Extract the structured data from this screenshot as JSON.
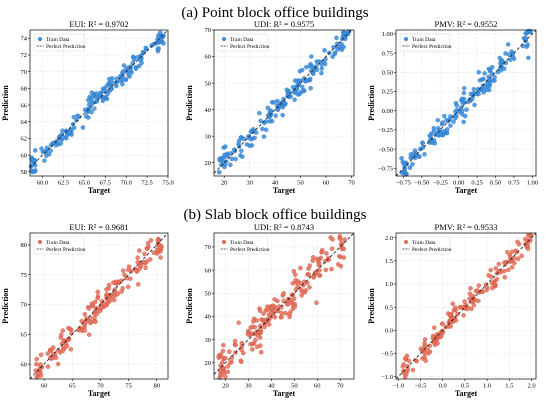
{
  "sections": [
    {
      "title": "(a) Point block office buildings"
    },
    {
      "title": "(b) Slab block office buildings"
    }
  ],
  "colors": {
    "blue": "#3a8ee0",
    "red": "#e8705a",
    "red_stroke": "#c24a36",
    "line": "#222222"
  },
  "chart_data": [
    {
      "type": "scatter",
      "section": 0,
      "title": "EUI: R² = 0.9702",
      "xlabel": "Target",
      "ylabel": "Prediction",
      "xlim": [
        58.5,
        75
      ],
      "ylim": [
        57.5,
        75
      ],
      "xticks": [
        60.0,
        62.5,
        65.0,
        67.5,
        70.0,
        72.5,
        75.0
      ],
      "yticks": [
        58,
        60,
        62,
        64,
        66,
        68,
        70,
        72,
        74
      ],
      "xtick_labels": [
        "60.0",
        "62.5",
        "65.0",
        "67.5",
        "70.0",
        "72.5",
        "75.0"
      ],
      "ytick_labels": [
        "58",
        "60",
        "62",
        "64",
        "66",
        "68",
        "70",
        "72",
        "74"
      ],
      "range": [
        58.5,
        74.5
      ],
      "noise": 0.55,
      "n": 170,
      "series": [
        {
          "name": "Train Data",
          "color": "blue"
        },
        {
          "name": "Perfect Prediction",
          "style": "dashed"
        }
      ],
      "grid": true,
      "legend": "top-left"
    },
    {
      "type": "scatter",
      "section": 0,
      "title": "UDI: R² = 0.9575",
      "xlabel": "Target",
      "ylabel": "Prediction",
      "xlim": [
        16,
        71
      ],
      "ylim": [
        15,
        70
      ],
      "xticks": [
        20,
        30,
        40,
        50,
        60,
        70
      ],
      "yticks": [
        20,
        30,
        40,
        50,
        60,
        70
      ],
      "xtick_labels": [
        "20",
        "30",
        "40",
        "50",
        "60",
        "70"
      ],
      "ytick_labels": [
        "20",
        "30",
        "40",
        "50",
        "60",
        "70"
      ],
      "range": [
        18,
        69
      ],
      "noise": 2.6,
      "n": 170,
      "series": [
        {
          "name": "Train Data",
          "color": "blue"
        },
        {
          "name": "Perfect Prediction",
          "style": "dashed"
        }
      ],
      "grid": true,
      "legend": "top-left"
    },
    {
      "type": "scatter",
      "section": 0,
      "title": "PMV: R² = 0.9552",
      "xlabel": "Target",
      "ylabel": "Prediction",
      "xlim": [
        -0.85,
        1.05
      ],
      "ylim": [
        -0.85,
        1.05
      ],
      "xticks": [
        -0.75,
        -0.5,
        -0.25,
        0.0,
        0.25,
        0.5,
        0.75,
        1.0
      ],
      "yticks": [
        -0.75,
        -0.5,
        -0.25,
        0.0,
        0.25,
        0.5,
        0.75,
        1.0
      ],
      "xtick_labels": [
        "−0.75",
        "−0.50",
        "−0.25",
        "0.00",
        "0.25",
        "0.50",
        "0.75",
        "1.00"
      ],
      "ytick_labels": [
        "−0.75",
        "−0.50",
        "−0.25",
        "0.00",
        "0.25",
        "0.50",
        "0.75",
        "1.00"
      ],
      "range": [
        -0.78,
        1.0
      ],
      "noise": 0.085,
      "n": 170,
      "series": [
        {
          "name": "Train Data",
          "color": "blue"
        },
        {
          "name": "Perfect Prediction",
          "style": "dashed"
        }
      ],
      "grid": true,
      "legend": "top-left"
    },
    {
      "type": "scatter",
      "section": 1,
      "title": "EUI: R² = 0.9681",
      "xlabel": "Target",
      "ylabel": "Prediction",
      "xlim": [
        57.5,
        82
      ],
      "ylim": [
        57.5,
        82
      ],
      "xticks": [
        60,
        65,
        70,
        75,
        80
      ],
      "yticks": [
        60,
        65,
        70,
        75,
        80
      ],
      "xtick_labels": [
        "60",
        "65",
        "70",
        "75",
        "80"
      ],
      "ytick_labels": [
        "60",
        "65",
        "70",
        "75",
        "80"
      ],
      "range": [
        58.5,
        81
      ],
      "noise": 1.05,
      "n": 170,
      "series": [
        {
          "name": "Train Data",
          "color": "red"
        },
        {
          "name": "Perfect Prediction",
          "style": "dashed"
        }
      ],
      "grid": true,
      "legend": "top-left"
    },
    {
      "type": "scatter",
      "section": 1,
      "title": "UDI: R² = 0.8743",
      "xlabel": "Target",
      "ylabel": "Prediction",
      "xlim": [
        15,
        76
      ],
      "ylim": [
        13,
        76
      ],
      "xticks": [
        20,
        30,
        40,
        50,
        60,
        70
      ],
      "yticks": [
        20,
        30,
        40,
        50,
        60,
        70
      ],
      "xtick_labels": [
        "20",
        "30",
        "40",
        "50",
        "60",
        "70"
      ],
      "ytick_labels": [
        "20",
        "30",
        "40",
        "50",
        "60",
        "70"
      ],
      "range": [
        17,
        72
      ],
      "noise": 4.6,
      "n": 200,
      "series": [
        {
          "name": "Train Data",
          "color": "red"
        },
        {
          "name": "Perfect Prediction",
          "style": "dashed"
        }
      ],
      "grid": true,
      "legend": "top-left"
    },
    {
      "type": "scatter",
      "section": 1,
      "title": "PMV: R² = 0.9533",
      "xlabel": "Target",
      "ylabel": "Prediction",
      "xlim": [
        -1.05,
        2.1
      ],
      "ylim": [
        -1.05,
        2.1
      ],
      "xticks": [
        -1.0,
        -0.5,
        0.0,
        0.5,
        1.0,
        1.5,
        2.0
      ],
      "yticks": [
        -1.0,
        -0.5,
        0.0,
        0.5,
        1.0,
        1.5,
        2.0
      ],
      "xtick_labels": [
        "−1.0",
        "−0.5",
        "0.0",
        "0.5",
        "1.0",
        "1.5",
        "2.0"
      ],
      "ytick_labels": [
        "−1.0",
        "−0.5",
        "0.0",
        "0.5",
        "1.0",
        "1.5",
        "2.0"
      ],
      "range": [
        -0.9,
        2.0
      ],
      "noise": 0.13,
      "n": 170,
      "series": [
        {
          "name": "Train Data",
          "color": "red"
        },
        {
          "name": "Perfect Prediction",
          "style": "dashed"
        }
      ],
      "grid": true,
      "legend": "top-left"
    }
  ]
}
